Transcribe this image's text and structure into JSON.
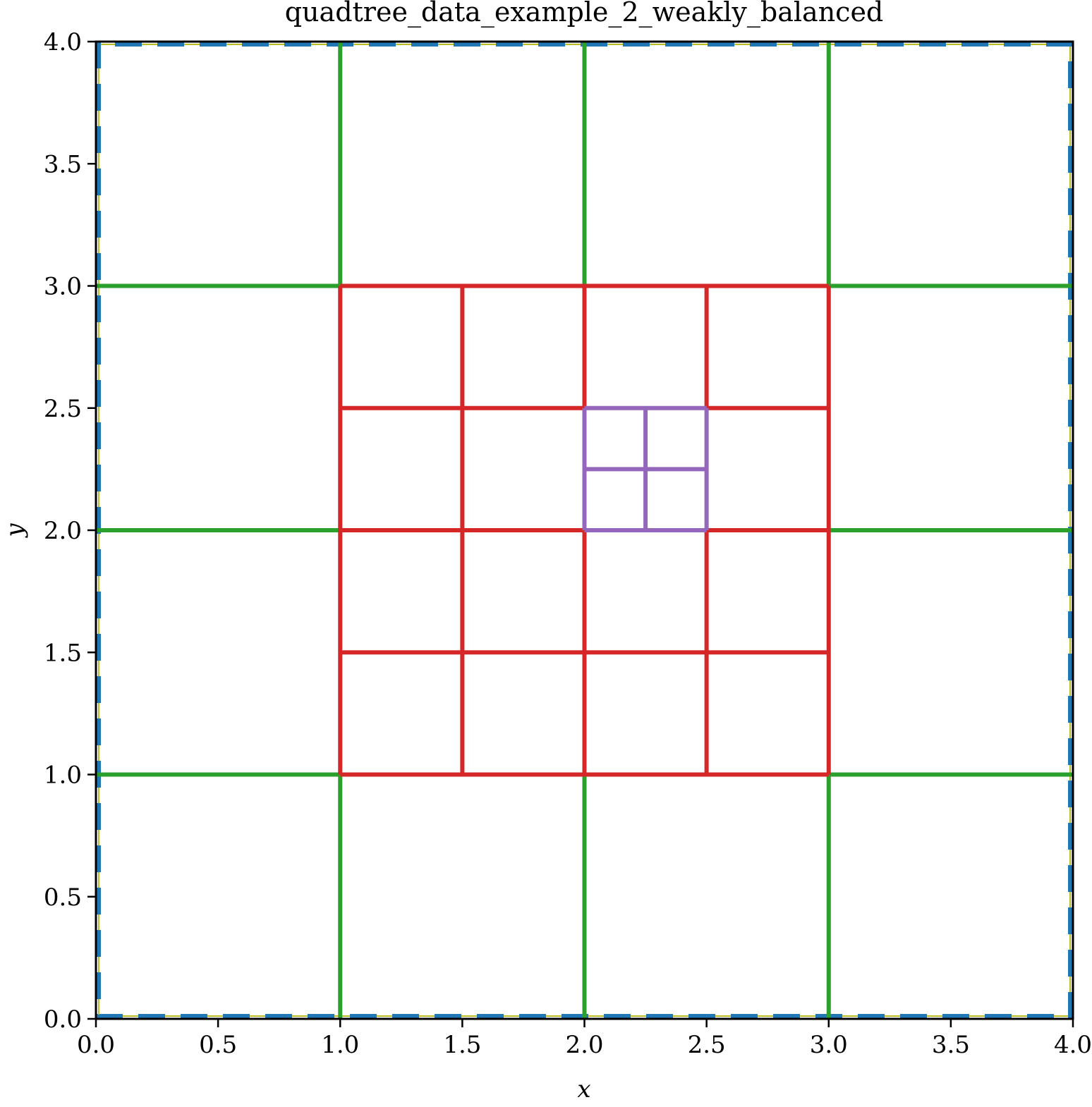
{
  "chart_data": {
    "type": "line",
    "title": "quadtree_data_example_2_weakly_balanced",
    "xlabel": "x",
    "ylabel": "y",
    "xlim": [
      0,
      4
    ],
    "ylim": [
      0,
      4
    ],
    "xticks": [
      "0.0",
      "0.5",
      "1.0",
      "1.5",
      "2.0",
      "2.5",
      "3.0",
      "3.5",
      "4.0"
    ],
    "yticks": [
      "0.0",
      "0.5",
      "1.0",
      "1.5",
      "2.0",
      "2.5",
      "3.0",
      "3.5",
      "4.0"
    ],
    "grid": false,
    "legend": "none",
    "colors": {
      "level0": "#1f77b4",
      "level0_under": "#bcbd22",
      "level2": "#2ca02c",
      "level3": "#d62728",
      "level4": "#9467bd"
    },
    "series": [
      {
        "level": 0,
        "style": "dashed",
        "segments": [
          [
            [
              0,
              0
            ],
            [
              4,
              0
            ]
          ],
          [
            [
              4,
              0
            ],
            [
              4,
              4
            ]
          ],
          [
            [
              4,
              4
            ],
            [
              0,
              4
            ]
          ],
          [
            [
              0,
              4
            ],
            [
              0,
              0
            ]
          ]
        ]
      },
      {
        "level": 2,
        "style": "solid",
        "segments": [
          [
            [
              1,
              0
            ],
            [
              1,
              1
            ]
          ],
          [
            [
              2,
              0
            ],
            [
              2,
              1
            ]
          ],
          [
            [
              3,
              0
            ],
            [
              3,
              1
            ]
          ],
          [
            [
              1,
              3
            ],
            [
              1,
              4
            ]
          ],
          [
            [
              2,
              3
            ],
            [
              2,
              4
            ]
          ],
          [
            [
              3,
              3
            ],
            [
              3,
              4
            ]
          ],
          [
            [
              0,
              1
            ],
            [
              1,
              1
            ]
          ],
          [
            [
              0,
              2
            ],
            [
              1,
              2
            ]
          ],
          [
            [
              0,
              3
            ],
            [
              1,
              3
            ]
          ],
          [
            [
              3,
              1
            ],
            [
              4,
              1
            ]
          ],
          [
            [
              3,
              2
            ],
            [
              4,
              2
            ]
          ],
          [
            [
              3,
              3
            ],
            [
              4,
              3
            ]
          ]
        ]
      },
      {
        "level": 3,
        "style": "solid",
        "segments": [
          [
            [
              1,
              1
            ],
            [
              3,
              1
            ]
          ],
          [
            [
              1,
              1.5
            ],
            [
              3,
              1.5
            ]
          ],
          [
            [
              1,
              2
            ],
            [
              3,
              2
            ]
          ],
          [
            [
              1,
              2.5
            ],
            [
              2,
              2.5
            ]
          ],
          [
            [
              2.5,
              2.5
            ],
            [
              3,
              2.5
            ]
          ],
          [
            [
              1,
              3
            ],
            [
              3,
              3
            ]
          ],
          [
            [
              1,
              1
            ],
            [
              1,
              3
            ]
          ],
          [
            [
              1.5,
              1
            ],
            [
              1.5,
              3
            ]
          ],
          [
            [
              2,
              1
            ],
            [
              2,
              2
            ]
          ],
          [
            [
              2,
              2.5
            ],
            [
              2,
              3
            ]
          ],
          [
            [
              2.5,
              1
            ],
            [
              2.5,
              2
            ]
          ],
          [
            [
              2.5,
              2.5
            ],
            [
              2.5,
              3
            ]
          ],
          [
            [
              3,
              1
            ],
            [
              3,
              3
            ]
          ]
        ]
      },
      {
        "level": 4,
        "style": "solid",
        "segments": [
          [
            [
              2,
              2
            ],
            [
              2.5,
              2
            ]
          ],
          [
            [
              2,
              2.25
            ],
            [
              2.5,
              2.25
            ]
          ],
          [
            [
              2,
              2.5
            ],
            [
              2.5,
              2.5
            ]
          ],
          [
            [
              2,
              2
            ],
            [
              2,
              2.5
            ]
          ],
          [
            [
              2.25,
              2
            ],
            [
              2.25,
              2.5
            ]
          ],
          [
            [
              2.5,
              2
            ],
            [
              2.5,
              2.5
            ]
          ]
        ]
      }
    ]
  }
}
